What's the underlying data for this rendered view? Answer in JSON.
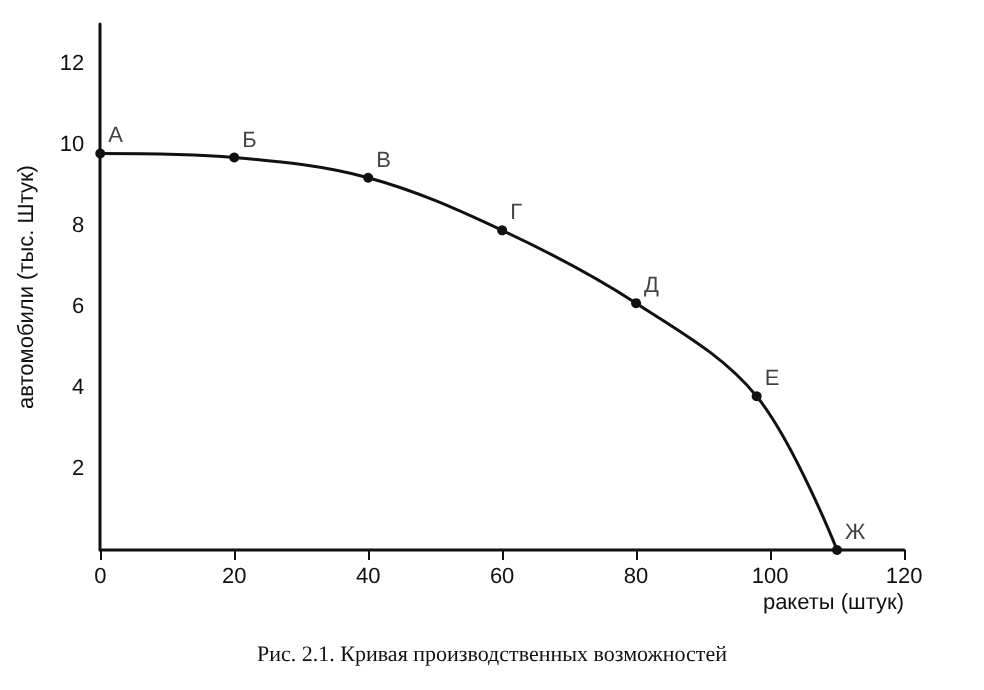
{
  "chart_data": {
    "type": "line",
    "xlabel": "ракеты (штук)",
    "ylabel": "автомобили (тыс. Штук)",
    "x": [
      0,
      20,
      40,
      60,
      80,
      98,
      110
    ],
    "series": [
      {
        "color": "#111111",
        "values": [
          9.8,
          9.7,
          9.2,
          7.9,
          6.1,
          3.8,
          0
        ]
      }
    ],
    "xlim": [
      0,
      120
    ],
    "xticks": [
      0,
      20,
      40,
      60,
      80,
      100,
      120
    ],
    "ylim": [
      0,
      13
    ],
    "yticks": [
      2,
      4,
      6,
      8,
      10,
      12
    ],
    "marker": "circle",
    "line_style": "solid",
    "grid": false,
    "annotations": [
      {
        "text": "А",
        "x": 0,
        "y": 9.8
      },
      {
        "text": "Б",
        "x": 20,
        "y": 9.7
      },
      {
        "text": "В",
        "x": 40,
        "y": 9.2
      },
      {
        "text": "Г",
        "x": 60,
        "y": 7.9
      },
      {
        "text": "Д",
        "x": 80,
        "y": 6.1
      },
      {
        "text": "Е",
        "x": 98,
        "y": 3.8
      },
      {
        "text": "Ж",
        "x": 110,
        "y": 0
      },
      "Рис. 2.1. Кривая производственных возможностей"
    ]
  }
}
